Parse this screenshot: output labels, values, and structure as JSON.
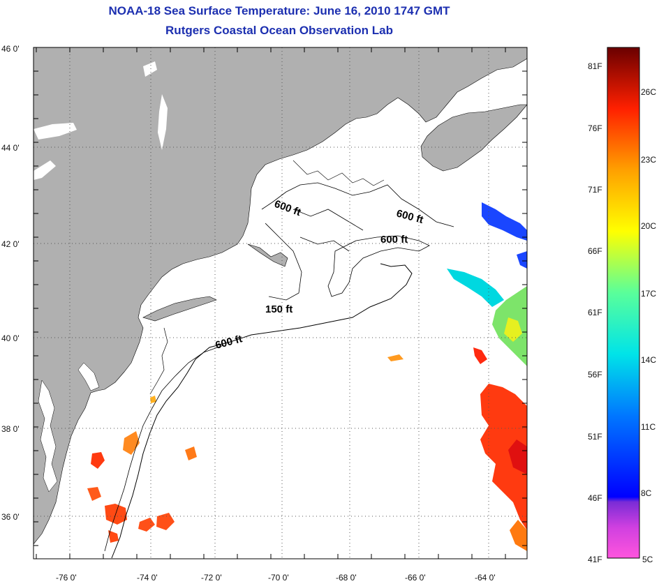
{
  "header": {
    "title": "NOAA-18 Sea Surface Temperature:  June 16, 2010 1747 GMT",
    "subtitle": "Rutgers Coastal Ocean Observation Lab"
  },
  "map": {
    "lat_labels": [
      "46 0'",
      "44 0'",
      "42 0'",
      "40 0'",
      "38 0'",
      "36 0'"
    ],
    "lon_labels": [
      "-76 0'",
      "-74 0'",
      "-72 0'",
      "-70 0'",
      "-68 0'",
      "-66 0'",
      "-64 0'"
    ],
    "contour_labels": [
      "600 ft",
      "600 ft",
      "600 ft",
      "150 ft",
      "600 ft"
    ],
    "colors": {
      "land": "#b0b0b0",
      "ocean": "#ffffff",
      "grid": "#555555"
    }
  },
  "colorbar": {
    "fahrenheit": [
      "81F",
      "76F",
      "71F",
      "66F",
      "61F",
      "56F",
      "51F",
      "46F",
      "41F"
    ],
    "celsius": [
      "26C",
      "23C",
      "20C",
      "17C",
      "14C",
      "11C",
      "8C",
      "5C"
    ],
    "gradient": [
      "#ff55dd",
      "#7a2cd6",
      "#0000ff",
      "#0078ff",
      "#00e4e8",
      "#5aff9a",
      "#ffff00",
      "#ffa000",
      "#ff2000",
      "#b00000",
      "#6a0000"
    ]
  }
}
